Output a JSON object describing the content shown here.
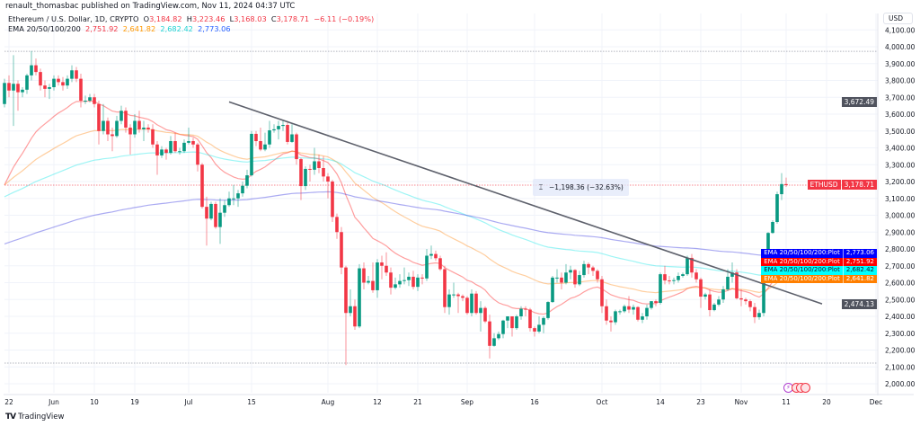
{
  "publish_line": "renault_thomasbac published on TradingView.com, Nov 11, 2024 04:37 UTC",
  "legend": {
    "symbol": "Ethereum / U.S. Dollar, 1D, CRYPTO",
    "o_label": "O",
    "o": "3,184.82",
    "h_label": "H",
    "h": "3,223.46",
    "l_label": "L",
    "l": "3,168.03",
    "c_label": "C",
    "c": "3,178.71",
    "change": "−6.11 (−0.19%)",
    "ema_title": "EMA 20/50/100/200",
    "ema_values": [
      "2,751.92",
      "2,641.82",
      "2,682.42",
      "2,773.06"
    ]
  },
  "currency_button": "USD",
  "measure_label": "−1,198.36 (−32.63%)",
  "measure_icon": "price-range-icon",
  "price_tags": {
    "symbol": "ETHUSD",
    "last_price": "3,178.71",
    "trend_top": "3,672.49",
    "trend_bottom": "2,474.13"
  },
  "ema_tags": [
    {
      "name": "EMA 20/50/100/200:Plot",
      "value": "2,773.06",
      "bg": "#0000ff",
      "fg": "#ffffff"
    },
    {
      "name": "EMA 20/50/100/200:Plot",
      "value": "2,751.92",
      "bg": "#ff0000",
      "fg": "#ffffff"
    },
    {
      "name": "EMA 20/50/100/200:Plot",
      "value": "2,682.42",
      "bg": "#00ffff",
      "fg": "#131722"
    },
    {
      "name": "EMA 20/50/100/200:Plot",
      "value": "2,641.82",
      "bg": "#ff7f00",
      "fg": "#ffffff"
    }
  ],
  "events": [
    "lightning-icon",
    "us-flag-icon",
    "us-flag-icon",
    "us-flag-icon"
  ],
  "brand": "TradingView",
  "colors": {
    "up": "#089981",
    "down": "#f23645",
    "grid": "#f0f3fa",
    "trendline": "#5d606b"
  },
  "chart_data": {
    "type": "candlestick",
    "symbol": "ETHUSD",
    "interval": "1D",
    "first_date": "2024-05-21",
    "ylim": [
      1930,
      4140
    ],
    "y_ticks": [
      "4,100.00",
      "4,000.00",
      "3,900.00",
      "3,800.00",
      "3,700.00",
      "3,600.00",
      "3,500.00",
      "3,400.00",
      "3,300.00",
      "3,200.00",
      "3,100.00",
      "3,000.00",
      "2,900.00",
      "2,800.00",
      "2,700.00",
      "2,600.00",
      "2,500.00",
      "2,400.00",
      "2,300.00",
      "2,200.00",
      "2,100.00",
      "2,000.00"
    ],
    "x_ticks": [
      {
        "label": "22",
        "date": "2024-05-22"
      },
      {
        "label": "Jun",
        "date": "2024-06-01"
      },
      {
        "label": "10",
        "date": "2024-06-10"
      },
      {
        "label": "19",
        "date": "2024-06-19"
      },
      {
        "label": "Jul",
        "date": "2024-07-01"
      },
      {
        "label": "15",
        "date": "2024-07-15"
      },
      {
        "label": "Aug",
        "date": "2024-08-01"
      },
      {
        "label": "12",
        "date": "2024-08-12"
      },
      {
        "label": "21",
        "date": "2024-08-21"
      },
      {
        "label": "Sep",
        "date": "2024-09-01"
      },
      {
        "label": "16",
        "date": "2024-09-16"
      },
      {
        "label": "Oct",
        "date": "2024-10-01"
      },
      {
        "label": "14",
        "date": "2024-10-14"
      },
      {
        "label": "23",
        "date": "2024-10-23"
      },
      {
        "label": "Nov",
        "date": "2024-11-01"
      },
      {
        "label": "11",
        "date": "2024-11-11"
      },
      {
        "label": "20",
        "date": "2024-11-20"
      },
      {
        "label": "Dec",
        "date": "2024-12-01"
      }
    ],
    "grid": true,
    "candles_ohlc": [
      [
        3660,
        3810,
        3640,
        3785
      ],
      [
        3785,
        3830,
        3700,
        3740
      ],
      [
        3740,
        3950,
        3530,
        3780
      ],
      [
        3780,
        3800,
        3620,
        3730
      ],
      [
        3730,
        3760,
        3700,
        3745
      ],
      [
        3745,
        3840,
        3720,
        3830
      ],
      [
        3830,
        3975,
        3800,
        3890
      ],
      [
        3890,
        3930,
        3830,
        3850
      ],
      [
        3850,
        3870,
        3740,
        3770
      ],
      [
        3770,
        3800,
        3700,
        3750
      ],
      [
        3750,
        3780,
        3690,
        3760
      ],
      [
        3760,
        3830,
        3740,
        3810
      ],
      [
        3810,
        3830,
        3770,
        3790
      ],
      [
        3790,
        3820,
        3740,
        3770
      ],
      [
        3770,
        3830,
        3750,
        3810
      ],
      [
        3810,
        3890,
        3790,
        3860
      ],
      [
        3860,
        3880,
        3790,
        3810
      ],
      [
        3810,
        3840,
        3640,
        3680
      ],
      [
        3680,
        3710,
        3660,
        3680
      ],
      [
        3680,
        3720,
        3670,
        3700
      ],
      [
        3700,
        3720,
        3640,
        3660
      ],
      [
        3660,
        3680,
        3420,
        3500
      ],
      [
        3500,
        3660,
        3480,
        3560
      ],
      [
        3560,
        3580,
        3440,
        3480
      ],
      [
        3480,
        3520,
        3380,
        3470
      ],
      [
        3470,
        3590,
        3460,
        3560
      ],
      [
        3560,
        3650,
        3540,
        3620
      ],
      [
        3620,
        3640,
        3490,
        3520
      ],
      [
        3520,
        3540,
        3360,
        3480
      ],
      [
        3480,
        3600,
        3460,
        3560
      ],
      [
        3560,
        3620,
        3490,
        3510
      ],
      [
        3510,
        3560,
        3440,
        3520
      ],
      [
        3520,
        3540,
        3490,
        3510
      ],
      [
        3510,
        3540,
        3400,
        3420
      ],
      [
        3420,
        3440,
        3240,
        3355
      ],
      [
        3355,
        3410,
        3340,
        3390
      ],
      [
        3390,
        3400,
        3330,
        3370
      ],
      [
        3370,
        3470,
        3360,
        3440
      ],
      [
        3440,
        3490,
        3370,
        3380
      ],
      [
        3380,
        3400,
        3360,
        3380
      ],
      [
        3380,
        3450,
        3370,
        3430
      ],
      [
        3430,
        3520,
        3420,
        3440
      ],
      [
        3440,
        3460,
        3400,
        3420
      ],
      [
        3420,
        3430,
        3260,
        3300
      ],
      [
        3300,
        3310,
        3040,
        3050
      ],
      [
        3050,
        3110,
        2820,
        2980
      ],
      [
        2980,
        3080,
        2970,
        3067
      ],
      [
        3067,
        3080,
        2920,
        2930
      ],
      [
        2930,
        3100,
        2830,
        3015
      ],
      [
        3015,
        3090,
        2990,
        3060
      ],
      [
        3060,
        3140,
        3050,
        3100
      ],
      [
        3100,
        3180,
        3060,
        3100
      ],
      [
        3100,
        3150,
        3050,
        3130
      ],
      [
        3130,
        3200,
        3110,
        3175
      ],
      [
        3175,
        3270,
        3160,
        3237
      ],
      [
        3237,
        3500,
        3230,
        3483
      ],
      [
        3483,
        3500,
        3410,
        3440
      ],
      [
        3440,
        3520,
        3380,
        3390
      ],
      [
        3390,
        3490,
        3380,
        3420
      ],
      [
        3420,
        3560,
        3400,
        3504
      ],
      [
        3504,
        3540,
        3490,
        3510
      ],
      [
        3510,
        3560,
        3450,
        3530
      ],
      [
        3530,
        3560,
        3500,
        3536
      ],
      [
        3536,
        3560,
        3420,
        3435
      ],
      [
        3435,
        3540,
        3430,
        3480
      ],
      [
        3480,
        3490,
        3300,
        3333
      ],
      [
        3333,
        3340,
        3090,
        3173
      ],
      [
        3173,
        3290,
        3150,
        3275
      ],
      [
        3275,
        3300,
        3200,
        3270
      ],
      [
        3270,
        3400,
        3240,
        3320
      ],
      [
        3320,
        3360,
        3250,
        3280
      ],
      [
        3280,
        3350,
        3200,
        3230
      ],
      [
        3230,
        3250,
        3100,
        3200
      ],
      [
        3200,
        3210,
        2960,
        2990
      ],
      [
        2990,
        3010,
        2860,
        2900
      ],
      [
        2900,
        2930,
        2650,
        2690
      ],
      [
        2690,
        2700,
        2111,
        2420
      ],
      [
        2420,
        2560,
        2400,
        2460
      ],
      [
        2460,
        2500,
        2320,
        2340
      ],
      [
        2340,
        2710,
        2330,
        2685
      ],
      [
        2685,
        2720,
        2560,
        2600
      ],
      [
        2600,
        2640,
        2590,
        2610
      ],
      [
        2610,
        2720,
        2540,
        2555
      ],
      [
        2555,
        2740,
        2510,
        2720
      ],
      [
        2720,
        2760,
        2620,
        2700
      ],
      [
        2700,
        2780,
        2640,
        2660
      ],
      [
        2660,
        2690,
        2530,
        2570
      ],
      [
        2570,
        2630,
        2560,
        2590
      ],
      [
        2590,
        2650,
        2570,
        2610
      ],
      [
        2610,
        2690,
        2590,
        2615
      ],
      [
        2615,
        2660,
        2580,
        2635
      ],
      [
        2635,
        2670,
        2560,
        2575
      ],
      [
        2575,
        2650,
        2550,
        2630
      ],
      [
        2630,
        2650,
        2590,
        2625
      ],
      [
        2625,
        2800,
        2610,
        2760
      ],
      [
        2760,
        2820,
        2740,
        2770
      ],
      [
        2770,
        2790,
        2730,
        2745
      ],
      [
        2745,
        2760,
        2670,
        2680
      ],
      [
        2680,
        2700,
        2420,
        2455
      ],
      [
        2455,
        2560,
        2410,
        2530
      ],
      [
        2530,
        2600,
        2510,
        2530
      ],
      [
        2530,
        2540,
        2420,
        2520
      ],
      [
        2520,
        2530,
        2490,
        2510
      ],
      [
        2510,
        2520,
        2410,
        2420
      ],
      [
        2420,
        2560,
        2400,
        2535
      ],
      [
        2535,
        2550,
        2410,
        2420
      ],
      [
        2420,
        2490,
        2310,
        2450
      ],
      [
        2450,
        2460,
        2360,
        2370
      ],
      [
        2370,
        2410,
        2150,
        2225
      ],
      [
        2225,
        2300,
        2220,
        2270
      ],
      [
        2270,
        2310,
        2260,
        2295
      ],
      [
        2295,
        2380,
        2270,
        2375
      ],
      [
        2375,
        2400,
        2330,
        2400
      ],
      [
        2400,
        2400,
        2280,
        2330
      ],
      [
        2330,
        2410,
        2320,
        2400
      ],
      [
        2400,
        2460,
        2380,
        2445
      ],
      [
        2445,
        2460,
        2400,
        2440
      ],
      [
        2440,
        2450,
        2310,
        2330
      ],
      [
        2330,
        2340,
        2280,
        2310
      ],
      [
        2310,
        2400,
        2300,
        2350
      ],
      [
        2350,
        2400,
        2300,
        2390
      ],
      [
        2390,
        2490,
        2380,
        2485
      ],
      [
        2485,
        2640,
        2480,
        2630
      ],
      [
        2630,
        2680,
        2600,
        2630
      ],
      [
        2630,
        2660,
        2560,
        2600
      ],
      [
        2600,
        2710,
        2590,
        2660
      ],
      [
        2660,
        2700,
        2620,
        2675
      ],
      [
        2675,
        2680,
        2570,
        2590
      ],
      [
        2590,
        2670,
        2580,
        2645
      ],
      [
        2645,
        2730,
        2630,
        2710
      ],
      [
        2710,
        2720,
        2650,
        2690
      ],
      [
        2690,
        2700,
        2640,
        2670
      ],
      [
        2670,
        2680,
        2600,
        2620
      ],
      [
        2620,
        2640,
        2420,
        2460
      ],
      [
        2460,
        2500,
        2350,
        2375
      ],
      [
        2375,
        2400,
        2310,
        2365
      ],
      [
        2365,
        2440,
        2350,
        2430
      ],
      [
        2430,
        2440,
        2410,
        2430
      ],
      [
        2430,
        2470,
        2420,
        2460
      ],
      [
        2460,
        2520,
        2420,
        2440
      ],
      [
        2440,
        2470,
        2410,
        2455
      ],
      [
        2455,
        2460,
        2370,
        2380
      ],
      [
        2380,
        2420,
        2360,
        2400
      ],
      [
        2400,
        2470,
        2380,
        2450
      ],
      [
        2450,
        2490,
        2440,
        2490
      ],
      [
        2490,
        2500,
        2460,
        2480
      ],
      [
        2480,
        2660,
        2470,
        2650
      ],
      [
        2650,
        2700,
        2590,
        2613
      ],
      [
        2613,
        2640,
        2590,
        2610
      ],
      [
        2610,
        2630,
        2590,
        2615
      ],
      [
        2615,
        2660,
        2600,
        2640
      ],
      [
        2640,
        2660,
        2630,
        2650
      ],
      [
        2650,
        2760,
        2640,
        2747
      ],
      [
        2747,
        2770,
        2630,
        2660
      ],
      [
        2660,
        2680,
        2600,
        2620
      ],
      [
        2620,
        2630,
        2450,
        2517
      ],
      [
        2517,
        2540,
        2500,
        2530
      ],
      [
        2530,
        2560,
        2400,
        2437
      ],
      [
        2437,
        2480,
        2430,
        2470
      ],
      [
        2470,
        2520,
        2460,
        2500
      ],
      [
        2500,
        2580,
        2480,
        2560
      ],
      [
        2560,
        2680,
        2550,
        2635
      ],
      [
        2635,
        2720,
        2600,
        2660
      ],
      [
        2660,
        2680,
        2500,
        2507
      ],
      [
        2507,
        2560,
        2460,
        2500
      ],
      [
        2500,
        2510,
        2470,
        2490
      ],
      [
        2490,
        2500,
        2430,
        2455
      ],
      [
        2455,
        2480,
        2360,
        2395
      ],
      [
        2395,
        2440,
        2380,
        2420
      ],
      [
        2420,
        2730,
        2400,
        2715
      ],
      [
        2715,
        2900,
        2710,
        2895
      ],
      [
        2895,
        2970,
        2890,
        2960
      ],
      [
        2960,
        3140,
        2950,
        3125
      ],
      [
        3125,
        3250,
        3090,
        3185
      ],
      [
        3184.82,
        3223.46,
        3168.03,
        3178.71
      ]
    ],
    "ema_series": [
      {
        "period": 20,
        "color": "#ff0000",
        "first_value": 3180
      },
      {
        "period": 50,
        "color": "#ff7f00",
        "first_value": 3180
      },
      {
        "period": 100,
        "color": "#00e5e5",
        "first_value": 3110
      },
      {
        "period": 200,
        "color": "#2222dd",
        "first_value": 2830
      }
    ],
    "trendline": {
      "start": {
        "date": "2024-07-10",
        "price": 3672.49
      },
      "end": {
        "date": "2024-11-19",
        "price": 2474.13
      }
    },
    "horizontal_levels": [
      3973,
      2123
    ],
    "last_price": 3178.71
  }
}
